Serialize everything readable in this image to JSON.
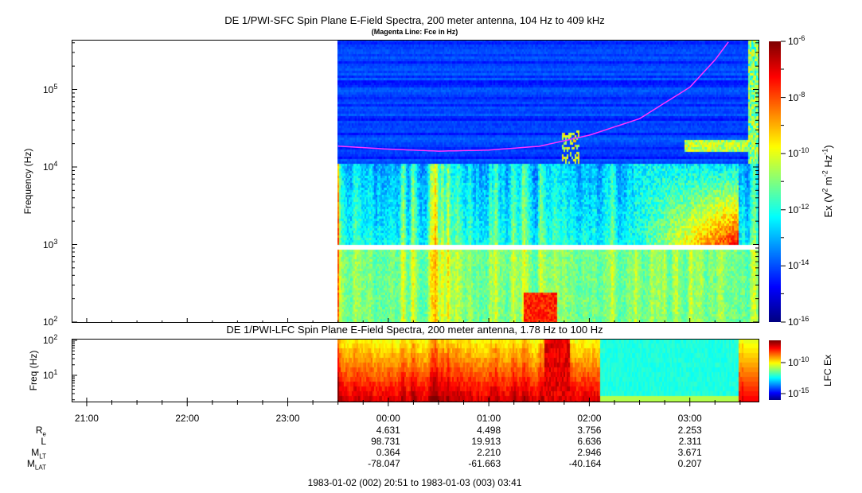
{
  "chart_data": [
    {
      "type": "heatmap",
      "title": "DE 1/PWI-SFC  Spin Plane E-Field Spectra, 200 meter antenna, 104 Hz to 409 kHz",
      "subtitle": "(Magenta Line: Fce in Hz)",
      "ylabel": "Frequency (Hz)",
      "yscale": "log",
      "ylim": [
        100,
        409000
      ],
      "y_ticks": [
        "10^2",
        "10^3",
        "10^4",
        "10^5"
      ],
      "xlim": [
        "20:51",
        "03:41"
      ],
      "data_start": "23:30",
      "x_ticks": [
        "21:00",
        "22:00",
        "23:00",
        "00:00",
        "01:00",
        "02:00",
        "03:00"
      ],
      "colorbar": {
        "label": "Ex (V^2 m^-2 Hz^-1)",
        "scale": "log",
        "range": [
          1e-16,
          1e-06
        ],
        "ticks": [
          "10^-6",
          "10^-8",
          "10^-10",
          "10^-12",
          "10^-14",
          "10^-16"
        ],
        "colormap": "jet"
      },
      "fce_line": {
        "color": "#ff33ff",
        "time": [
          "23:30",
          "00:00",
          "00:30",
          "01:00",
          "01:30",
          "02:00",
          "02:30",
          "03:00",
          "03:15",
          "03:23"
        ],
        "freq_hz": [
          18600,
          17000,
          16000,
          16500,
          18500,
          25700,
          42000,
          107000,
          240000,
          409000
        ]
      }
    },
    {
      "type": "heatmap",
      "title": "DE 1/PWI-LFC  Spin Plane E-Field Spectra, 200 meter antenna, 1.78 Hz to 100 Hz",
      "ylabel": "Freq (Hz)",
      "yscale": "log",
      "ylim": [
        1.78,
        100
      ],
      "y_ticks": [
        "10^1",
        "10^2"
      ],
      "colorbar": {
        "label": "LFC Ex",
        "scale": "log",
        "ticks": [
          "10^-10",
          "10^-15"
        ],
        "colormap": "jet"
      }
    }
  ],
  "ephemeris": {
    "labels": [
      "R",
      "L",
      "M",
      "M"
    ],
    "subs": [
      "e",
      "",
      "LT",
      "LAT"
    ],
    "columns": [
      {
        "time": "00:00",
        "values": [
          "4.631",
          "98.731",
          "0.364",
          "-78.047"
        ]
      },
      {
        "time": "01:00",
        "values": [
          "4.498",
          "19.913",
          "2.210",
          "-61.663"
        ]
      },
      {
        "time": "02:00",
        "values": [
          "3.756",
          "6.636",
          "2.946",
          "-40.164"
        ]
      },
      {
        "time": "03:00",
        "values": [
          "2.253",
          "2.311",
          "3.671",
          "0.207"
        ]
      }
    ]
  },
  "time_range": "1983-01-02 (002) 20:51 to 1983-01-03 (003) 03:41"
}
